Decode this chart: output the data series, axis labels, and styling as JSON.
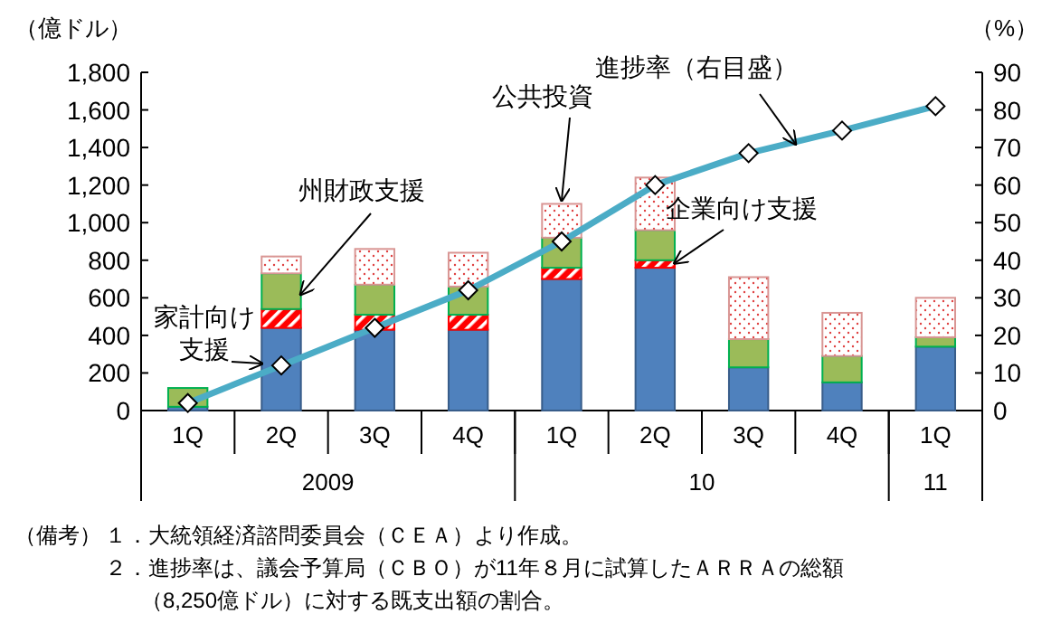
{
  "chart_data": {
    "type": "bar",
    "stacked": true,
    "ylabel": "（億ドル）",
    "y2label": "（%）",
    "categories": [
      "1Q",
      "2Q",
      "3Q",
      "4Q",
      "1Q",
      "2Q",
      "3Q",
      "4Q",
      "1Q"
    ],
    "series": [
      {
        "name": "家計向け支援",
        "color": "#4f81bd",
        "values": [
          20,
          440,
          430,
          430,
          700,
          760,
          230,
          150,
          340
        ]
      },
      {
        "name": "企業向け支援",
        "color": "#ff0000",
        "values": [
          0,
          100,
          80,
          80,
          60,
          40,
          0,
          0,
          0
        ]
      },
      {
        "name": "州財政支援",
        "color": "#9bbb59",
        "values": [
          100,
          190,
          160,
          150,
          160,
          160,
          150,
          140,
          50
        ]
      },
      {
        "name": "公共投資",
        "color": "#d99694",
        "values": [
          0,
          90,
          190,
          180,
          180,
          280,
          330,
          230,
          210
        ]
      },
      {
        "name": "進捗率（右目盛）",
        "type": "line",
        "axis": "y2",
        "color": "#4bacc6",
        "marker": "diamond",
        "values": [
          2,
          12,
          22,
          32,
          45,
          60,
          68.5,
          74.5,
          81
        ]
      }
    ],
    "ylim": [
      0,
      1800
    ],
    "yticks": [
      0,
      200,
      400,
      600,
      800,
      {
        "value": 1000,
        "label": "1,000"
      },
      {
        "value": 1200,
        "label": "1,200"
      },
      {
        "value": 1400,
        "label": "1,400"
      },
      {
        "value": 1600,
        "label": "1,600"
      },
      {
        "value": 1800,
        "label": "1,800"
      }
    ],
    "y2lim": [
      0,
      90
    ],
    "y2ticks": [
      0,
      10,
      20,
      30,
      40,
      50,
      60,
      70,
      80,
      90
    ],
    "grid": false,
    "annotations": [
      "2009",
      "10",
      "11",
      "（備考）",
      "１．大統領経済諮問委員会（ＣＥＡ）より作成。",
      "２．進捗率は、議会予算局（ＣＢＯ）が11年８月に試算したＡＲＲＡの総額",
      "（8,250億ドル）に対する既支出額の割合。"
    ]
  }
}
